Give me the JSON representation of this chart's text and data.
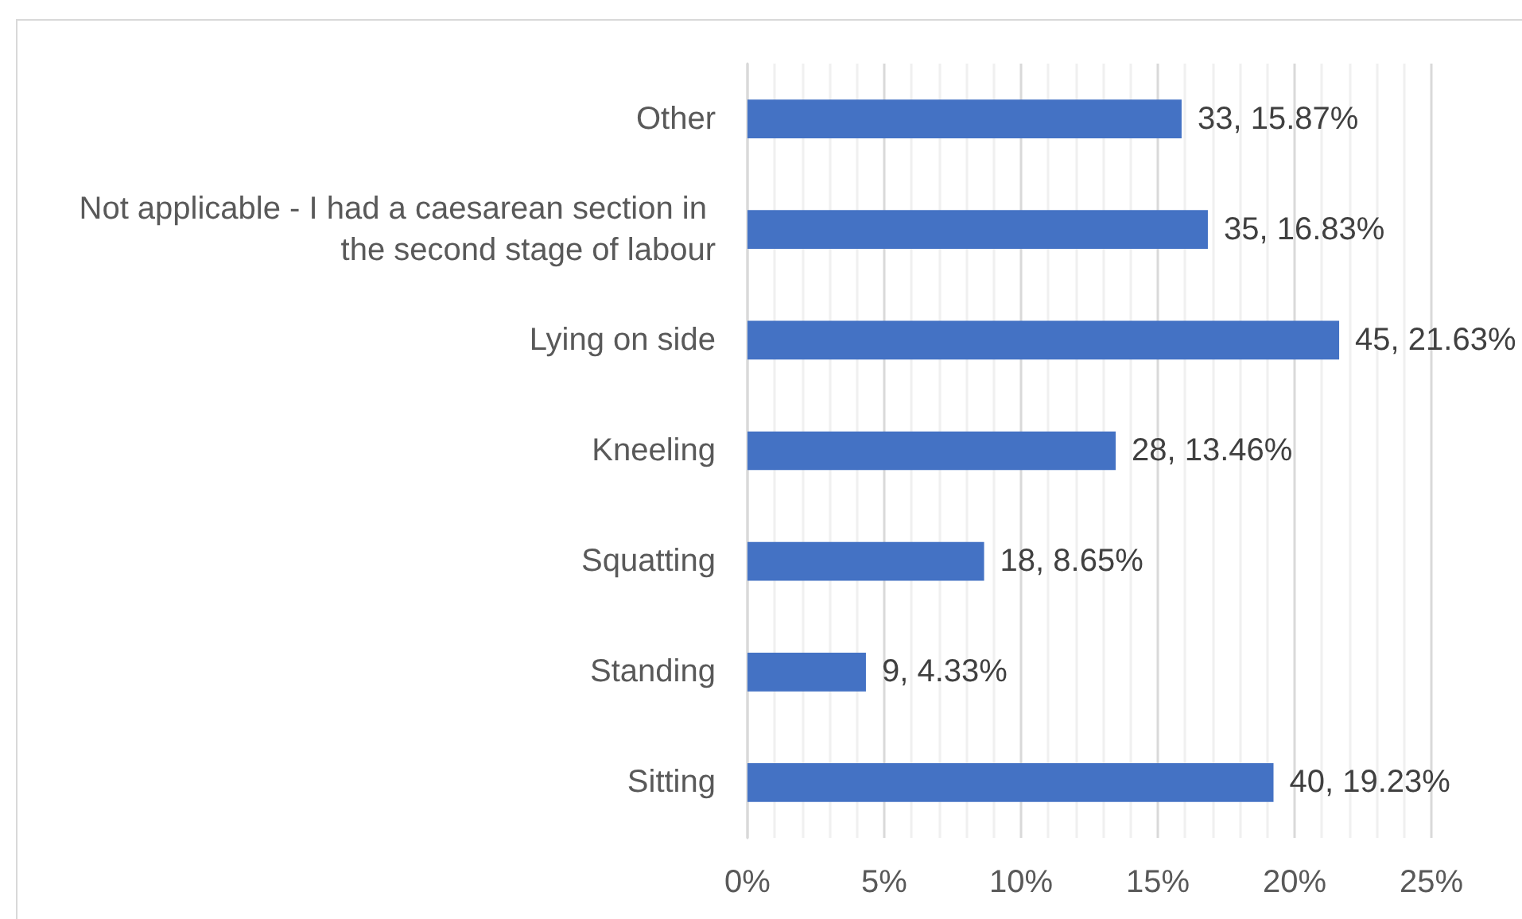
{
  "chart_data": {
    "type": "bar",
    "orientation": "horizontal",
    "categories": [
      "Other",
      "Not applicable - I had a caesarean section in the second stage of labour",
      "Lying on side",
      "Kneeling",
      "Squatting",
      "Standing",
      "Sitting"
    ],
    "values": [
      15.87,
      16.83,
      21.63,
      13.46,
      8.65,
      4.33,
      19.23
    ],
    "value_labels": [
      "33, 15.87%",
      "35, 16.83%",
      "45, 21.63%",
      "28, 13.46%",
      "18, 8.65%",
      "9, 4.33%",
      "40, 19.23%"
    ],
    "color": "#4472c4",
    "xlim": [
      0,
      25
    ],
    "xticks": [
      {
        "value": 0,
        "label": "0%"
      },
      {
        "value": 1,
        "label": null
      },
      {
        "value": 2,
        "label": null
      },
      {
        "value": 3,
        "label": null
      },
      {
        "value": 4,
        "label": null
      },
      {
        "value": 5,
        "label": "5%"
      },
      {
        "value": 6,
        "label": null
      },
      {
        "value": 7,
        "label": null
      },
      {
        "value": 8,
        "label": null
      },
      {
        "value": 9,
        "label": null
      },
      {
        "value": 10,
        "label": "10%"
      },
      {
        "value": 11,
        "label": null
      },
      {
        "value": 12,
        "label": null
      },
      {
        "value": 13,
        "label": null
      },
      {
        "value": 14,
        "label": null
      },
      {
        "value": 15,
        "label": "15%"
      },
      {
        "value": 16,
        "label": null
      },
      {
        "value": 17,
        "label": null
      },
      {
        "value": 18,
        "label": null
      },
      {
        "value": 19,
        "label": null
      },
      {
        "value": 20,
        "label": "20%"
      },
      {
        "value": 21,
        "label": null
      },
      {
        "value": 22,
        "label": null
      },
      {
        "value": 23,
        "label": null
      },
      {
        "value": 24,
        "label": null
      },
      {
        "value": 25,
        "label": "25%"
      }
    ],
    "grid": "x"
  }
}
